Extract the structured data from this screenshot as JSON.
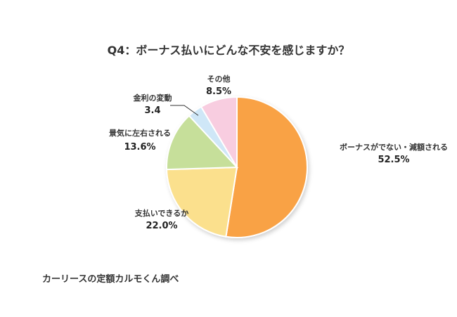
{
  "chart_data": {
    "type": "pie",
    "title": "Q4：ボーナス払いにどんな不安を感じますか？",
    "slices": [
      {
        "label": "ボーナスがでない・減額される",
        "value": 52.5,
        "value_label": "52.5%",
        "color": "#f9a245"
      },
      {
        "label": "支払いできるか",
        "value": 22.0,
        "value_label": "22.0%",
        "color": "#fbe08d"
      },
      {
        "label": "景気に左右される",
        "value": 13.6,
        "value_label": "13.6%",
        "color": "#c6df9a"
      },
      {
        "label": "金利の変動",
        "value": 3.4,
        "value_label": "3.4",
        "color": "#cfe7f7"
      },
      {
        "label": "その他",
        "value": 8.5,
        "value_label": "8.5%",
        "color": "#f8cde0"
      }
    ]
  },
  "source": "カーリースの定額カルモくん調べ"
}
